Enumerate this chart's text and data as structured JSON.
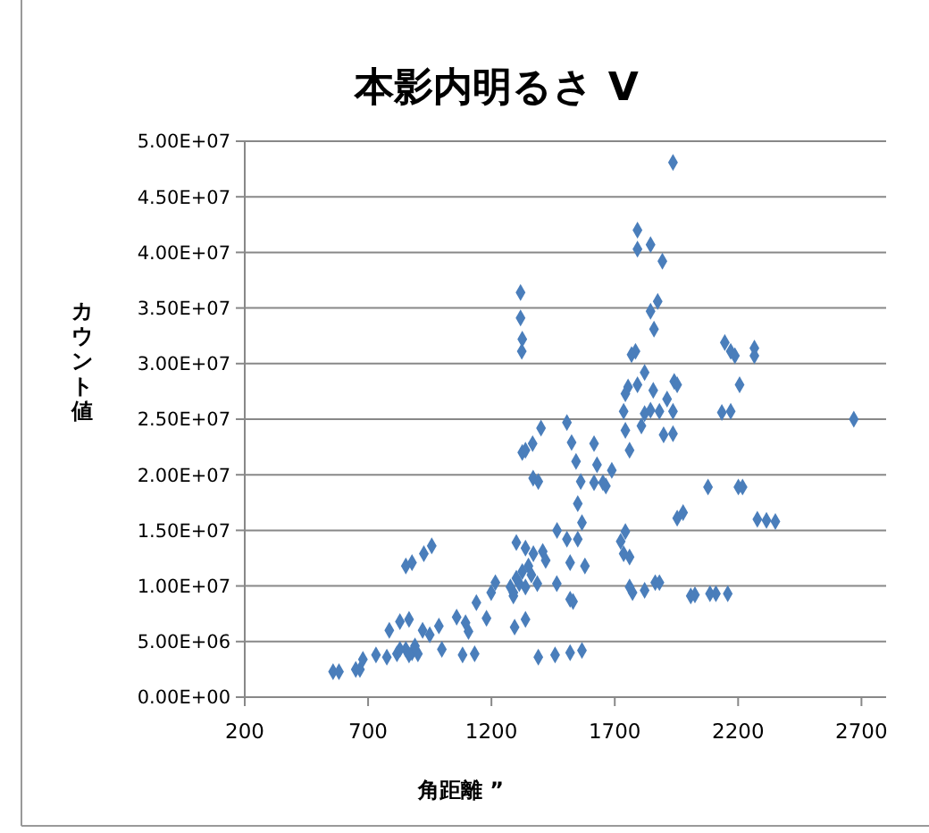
{
  "chart_data": {
    "type": "scatter",
    "title": "本影内明るさ V",
    "xlabel": "角距離 ”",
    "ylabel": "カウント値",
    "xlim": [
      200,
      2800
    ],
    "xticks": [
      200,
      700,
      1200,
      1700,
      2200,
      2700
    ],
    "ylim": [
      0,
      50000000
    ],
    "yticks": [
      {
        "value": 0,
        "label": "0.00E+00"
      },
      {
        "value": 5000000,
        "label": "5.00E+06"
      },
      {
        "value": 10000000,
        "label": "1.00E+07"
      },
      {
        "value": 15000000,
        "label": "1.50E+07"
      },
      {
        "value": 20000000,
        "label": "2.00E+07"
      },
      {
        "value": 25000000,
        "label": "2.50E+07"
      },
      {
        "value": 30000000,
        "label": "3.00E+07"
      },
      {
        "value": 35000000,
        "label": "3.50E+07"
      },
      {
        "value": 40000000,
        "label": "4.00E+07"
      },
      {
        "value": 45000000,
        "label": "4.50E+07"
      },
      {
        "value": 50000000,
        "label": "5.00E+07"
      }
    ],
    "grid": "y",
    "marker": "diamond",
    "series": [
      {
        "color": "#4a7ebb",
        "x": [
          558,
          582,
          650,
          667,
          679,
          732,
          776,
          817,
          853,
          878,
          902,
          829,
          866,
          786,
          853,
          878,
          926,
          958,
          921,
          950,
          987,
          999,
          1083,
          1132,
          1059,
          1095,
          1107,
          1139,
          1180,
          1199,
          1216,
          1294,
          1338,
          1289,
          1313,
          1362,
          1301,
          1338,
          1390,
          1458,
          1519,
          1567,
          1318,
          1318,
          1325,
          1323,
          1325,
          1338,
          1367,
          1401,
          1369,
          1390,
          1506,
          1525,
          1543,
          1550,
          1562,
          1567,
          1466,
          1506,
          1550,
          1519,
          1579,
          1465,
          1519,
          1531,
          1408,
          1420,
          1370,
          1277,
          1301,
          1325,
          1350,
          1289,
          1338,
          1386,
          829,
          866,
          890,
          1936,
          1792,
          1792,
          1845,
          1893,
          1874,
          1845,
          1859,
          1784,
          1768,
          1821,
          1754,
          1743,
          1792,
          1856,
          1941,
          1953,
          1912,
          1736,
          1743,
          1760,
          1821,
          1845,
          1881,
          1808,
          1936,
          1898,
          1936,
          2146,
          2170,
          2187,
          2266,
          2266,
          2206,
          2134,
          2170,
          2669,
          2078,
          2201,
          2218,
          1953,
          1977,
          2278,
          2315,
          2351,
          1743,
          1724,
          1736,
          1760,
          1760,
          1772,
          1821,
          1864,
          1881,
          2008,
          2025,
          2086,
          2110,
          2158,
          1616,
          1628,
          1688,
          1664,
          1616,
          1652
        ],
        "values": [
          2300000.0,
          2300000.0,
          2500000.0,
          2500000.0,
          3400000.0,
          3800000.0,
          3600000.0,
          3900000.0,
          4300000.0,
          4000000.0,
          3900000.0,
          6800000.0,
          7000000.0,
          6000000.0,
          11800000.0,
          12100000.0,
          12900000.0,
          13600000.0,
          6000000.0,
          5600000.0,
          6400000.0,
          4300000.0,
          3800000.0,
          3900000.0,
          7200000.0,
          6700000.0,
          5900000.0,
          8500000.0,
          7100000.0,
          9400000.0,
          10300000.0,
          6300000.0,
          7000000.0,
          9400000.0,
          10200000.0,
          11000000.0,
          13900000.0,
          13400000.0,
          3600000.0,
          3800000.0,
          4000000.0,
          4200000.0,
          36400000.0,
          34100000.0,
          32200000.0,
          31100000.0,
          22000000.0,
          22200000.0,
          22800000.0,
          24200000.0,
          19700000.0,
          19400000.0,
          24700000.0,
          22900000.0,
          21200000.0,
          17400000.0,
          19400000.0,
          15700000.0,
          15000000.0,
          14200000.0,
          14200000.0,
          12100000.0,
          11800000.0,
          10200000.0,
          8800000.0,
          8600000.0,
          13100000.0,
          12300000.0,
          12900000.0,
          9900000.0,
          10700000.0,
          11300000.0,
          11800000.0,
          9100000.0,
          9900000.0,
          10200000.0,
          4300000.0,
          3800000.0,
          4600000.0,
          48100000.0,
          42000000.0,
          40300000.0,
          40700000.0,
          39200000.0,
          35600000.0,
          34700000.0,
          33100000.0,
          31100000.0,
          30800000.0,
          29200000.0,
          27900000.0,
          27300000.0,
          28100000.0,
          27600000.0,
          28400000.0,
          28100000.0,
          26800000.0,
          25700000.0,
          24000000.0,
          22200000.0,
          25500000.0,
          25800000.0,
          25700000.0,
          24400000.0,
          25700000.0,
          23600000.0,
          23700000.0,
          31900000.0,
          31100000.0,
          30700000.0,
          31400000.0,
          30700000.0,
          28100000.0,
          25600000.0,
          25700000.0,
          25000000.0,
          18900000.0,
          18900000.0,
          18900000.0,
          16100000.0,
          16600000.0,
          16000000.0,
          15900000.0,
          15800000.0,
          14900000.0,
          14000000.0,
          12900000.0,
          12600000.0,
          9900000.0,
          9400000.0,
          9600000.0,
          10300000.0,
          10300000.0,
          9100000.0,
          9200000.0,
          9300000.0,
          9300000.0,
          9300000.0,
          22800000.0,
          20900000.0,
          20400000.0,
          19000000.0,
          19300000.0,
          19300000.0
        ]
      }
    ]
  }
}
